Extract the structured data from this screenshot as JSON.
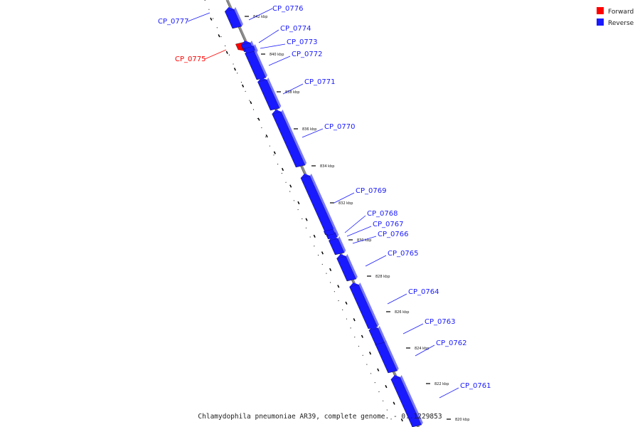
{
  "caption": "Chlamydophila pneumoniae AR39, complete genome. - 0..1229853",
  "legend": [
    {
      "label": "Forward",
      "color": "#ff0000"
    },
    {
      "label": "Reverse",
      "color": "#1a1aff"
    }
  ],
  "colors": {
    "forward": "#ff0000",
    "reverse": "#1a1aff",
    "backbone": "#8c8c8c"
  },
  "ticks": [
    "842 kbp",
    "840 kbp",
    "838 kbp",
    "836 kbp",
    "834 kbp",
    "832 kbp",
    "830 kbp",
    "828 kbp",
    "826 kbp",
    "824 kbp",
    "822 kbp",
    "820 kbp"
  ],
  "genes": [
    {
      "name": "CP_0777",
      "strand": "reverse"
    },
    {
      "name": "CP_0776",
      "strand": "reverse"
    },
    {
      "name": "CP_0775",
      "strand": "forward"
    },
    {
      "name": "CP_0774",
      "strand": "reverse"
    },
    {
      "name": "CP_0773",
      "strand": "reverse"
    },
    {
      "name": "CP_0772",
      "strand": "reverse"
    },
    {
      "name": "CP_0771",
      "strand": "reverse"
    },
    {
      "name": "CP_0770",
      "strand": "reverse"
    },
    {
      "name": "CP_0769",
      "strand": "reverse"
    },
    {
      "name": "CP_0768",
      "strand": "reverse"
    },
    {
      "name": "CP_0767",
      "strand": "reverse"
    },
    {
      "name": "CP_0766",
      "strand": "reverse"
    },
    {
      "name": "CP_0765",
      "strand": "reverse"
    },
    {
      "name": "CP_0764",
      "strand": "reverse"
    },
    {
      "name": "CP_0763",
      "strand": "reverse"
    },
    {
      "name": "CP_0762",
      "strand": "reverse"
    },
    {
      "name": "CP_0761",
      "strand": "reverse"
    }
  ]
}
